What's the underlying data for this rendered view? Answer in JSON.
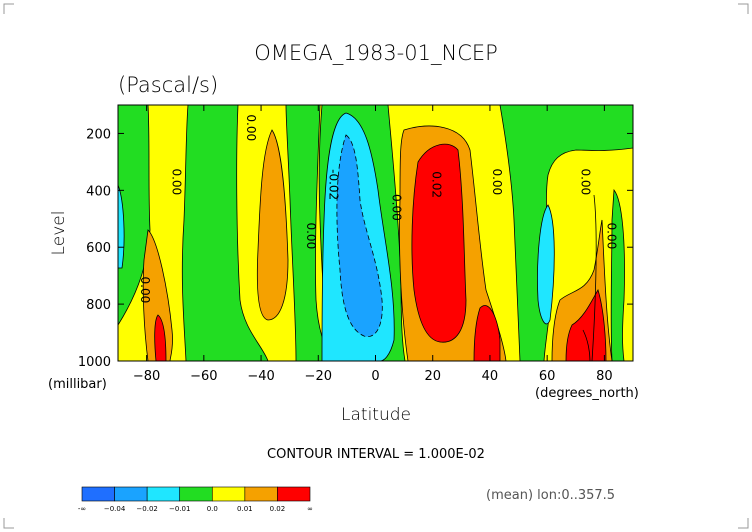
{
  "chart_data": {
    "type": "contour",
    "title": "OMEGA_1983-01_NCEP",
    "subtitle": "(Pascal/s)",
    "xlabel": "Latitude",
    "ylabel": "Level",
    "x_unit": "(degrees_north)",
    "y_unit": "(millibar)",
    "xlim": [
      -90,
      90
    ],
    "ylim": [
      1000,
      100
    ],
    "x_ticks": [
      -80,
      -60,
      -40,
      -20,
      0,
      20,
      40,
      60,
      80
    ],
    "x_tick_labels": [
      "−80",
      "−60",
      "−40",
      "−20",
      "0",
      "20",
      "40",
      "60",
      "80"
    ],
    "y_ticks": [
      200,
      400,
      600,
      800,
      1000
    ],
    "y_tick_labels": [
      "200",
      "400",
      "600",
      "800",
      "1000"
    ],
    "contour_interval_text": "CONTOUR INTERVAL = 1.000E-02",
    "mean_note": "(mean) lon:0..357.5",
    "levels": [
      -0.04,
      -0.02,
      -0.01,
      0.0,
      0.01,
      0.02
    ],
    "colorbar": {
      "colors": [
        "#1f6fff",
        "#1aa3ff",
        "#1fe6ff",
        "#22dd22",
        "#ffff00",
        "#f5a100",
        "#ff0000"
      ],
      "labels": [
        "-∞",
        "−0.04",
        "−0.02",
        "−0.01",
        "0.0",
        "0.01",
        "0.02",
        "∞"
      ]
    },
    "contour_labels": [
      {
        "lat": -82,
        "level": 750,
        "text": "0.00"
      },
      {
        "lat": -71,
        "level": 370,
        "text": "0.00"
      },
      {
        "lat": -45,
        "level": 180,
        "text": "0.00"
      },
      {
        "lat": -24,
        "level": 560,
        "text": "0.00"
      },
      {
        "lat": -16,
        "level": 380,
        "text": "-0.02"
      },
      {
        "lat": 6,
        "level": 460,
        "text": "0.00"
      },
      {
        "lat": 20,
        "level": 380,
        "text": "0.02"
      },
      {
        "lat": 41,
        "level": 370,
        "text": "0.00"
      },
      {
        "lat": 72,
        "level": 370,
        "text": "0.00"
      },
      {
        "lat": 81,
        "level": 560,
        "text": "0.00"
      }
    ]
  }
}
